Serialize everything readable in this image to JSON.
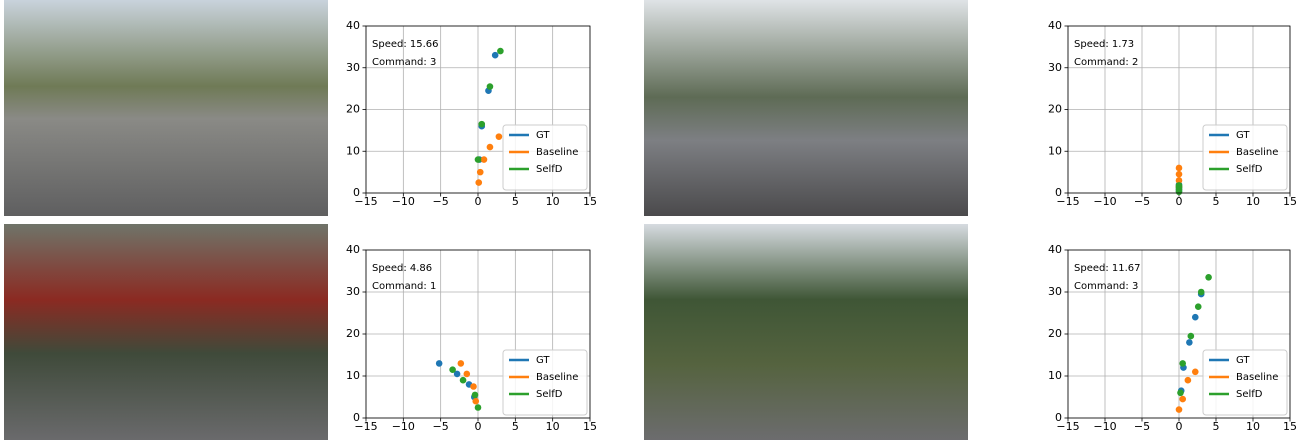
{
  "chart_data": [
    {
      "type": "scatter",
      "annotations": [
        "Speed: 15.66",
        "Command: 3"
      ],
      "xlim": [
        -15,
        15
      ],
      "ylim": [
        0,
        40
      ],
      "xticks": [
        {
          "value": -15,
          "label": "−15"
        },
        {
          "value": -10,
          "label": "−10"
        },
        {
          "value": -5,
          "label": "−5"
        },
        0,
        5,
        10,
        15
      ],
      "yticks": [
        0,
        10,
        20,
        30,
        40
      ],
      "grid": true,
      "legend": "lower right",
      "series": [
        {
          "name": "GT",
          "color": "#1f77b4",
          "x": [
            0.2,
            0.5,
            1.4,
            2.3
          ],
          "values": [
            8,
            16,
            24.5,
            33
          ]
        },
        {
          "name": "Baseline",
          "color": "#ff7f0e",
          "x": [
            0.1,
            0.3,
            0.8,
            1.6,
            2.8
          ],
          "values": [
            2.5,
            5,
            8,
            11,
            13.5
          ]
        },
        {
          "name": "SelfD",
          "color": "#2ca02c",
          "x": [
            0.0,
            0.5,
            1.6,
            3.0
          ],
          "values": [
            8,
            16.5,
            25.5,
            34
          ]
        }
      ]
    },
    {
      "type": "scatter",
      "annotations": [
        "Speed: 1.73",
        "Command: 2"
      ],
      "xlim": [
        -15,
        15
      ],
      "ylim": [
        0,
        40
      ],
      "xticks": [
        {
          "value": -15,
          "label": "−15"
        },
        {
          "value": -10,
          "label": "−10"
        },
        {
          "value": -5,
          "label": "−5"
        },
        0,
        5,
        10,
        15
      ],
      "yticks": [
        0,
        10,
        20,
        30,
        40
      ],
      "grid": true,
      "legend": "lower right",
      "series": [
        {
          "name": "GT",
          "color": "#1f77b4",
          "x": [
            0,
            0,
            0,
            0
          ],
          "values": [
            0.5,
            1,
            1.5,
            2
          ]
        },
        {
          "name": "Baseline",
          "color": "#ff7f0e",
          "x": [
            0,
            0,
            0,
            0
          ],
          "values": [
            1.5,
            3,
            4.5,
            6
          ]
        },
        {
          "name": "SelfD",
          "color": "#2ca02c",
          "x": [
            0,
            0,
            0,
            0
          ],
          "values": [
            0.3,
            0.8,
            1.3,
            1.8
          ]
        }
      ]
    },
    {
      "type": "scatter",
      "annotations": [
        "Speed: 4.86",
        "Command: 1"
      ],
      "xlim": [
        -15,
        15
      ],
      "ylim": [
        0,
        40
      ],
      "xticks": [
        {
          "value": -15,
          "label": "−15"
        },
        {
          "value": -10,
          "label": "−10"
        },
        {
          "value": -5,
          "label": "−5"
        },
        0,
        5,
        10,
        15
      ],
      "yticks": [
        0,
        10,
        20,
        30,
        40
      ],
      "grid": true,
      "legend": "lower right",
      "series": [
        {
          "name": "GT",
          "color": "#1f77b4",
          "x": [
            -0.5,
            -1.2,
            -2.8,
            -5.2
          ],
          "values": [
            5,
            8,
            10.5,
            13
          ]
        },
        {
          "name": "Baseline",
          "color": "#ff7f0e",
          "x": [
            -0.3,
            -0.6,
            -1.5,
            -2.3
          ],
          "values": [
            4,
            7.5,
            10.5,
            13
          ]
        },
        {
          "name": "SelfD",
          "color": "#2ca02c",
          "x": [
            0.0,
            -0.4,
            -2.0,
            -3.4
          ],
          "values": [
            2.5,
            5.5,
            9,
            11.5
          ]
        }
      ]
    },
    {
      "type": "scatter",
      "annotations": [
        "Speed: 11.67",
        "Command: 3"
      ],
      "xlim": [
        -15,
        15
      ],
      "ylim": [
        0,
        40
      ],
      "xticks": [
        {
          "value": -15,
          "label": "−15"
        },
        {
          "value": -10,
          "label": "−10"
        },
        {
          "value": -5,
          "label": "−5"
        },
        0,
        5,
        10,
        15
      ],
      "yticks": [
        0,
        10,
        20,
        30,
        40
      ],
      "grid": true,
      "legend": "lower right",
      "series": [
        {
          "name": "GT",
          "color": "#1f77b4",
          "x": [
            0.3,
            0.6,
            1.4,
            2.2,
            3.0
          ],
          "values": [
            6.5,
            12,
            18,
            24,
            29.5
          ]
        },
        {
          "name": "Baseline",
          "color": "#ff7f0e",
          "x": [
            0.0,
            0.5,
            1.2,
            2.2
          ],
          "values": [
            2,
            4.5,
            9,
            11
          ]
        },
        {
          "name": "SelfD",
          "color": "#2ca02c",
          "x": [
            0.2,
            0.5,
            1.6,
            2.6,
            3.0,
            4.0
          ],
          "values": [
            6,
            13,
            19.5,
            26.5,
            30,
            33.5
          ]
        }
      ]
    }
  ]
}
